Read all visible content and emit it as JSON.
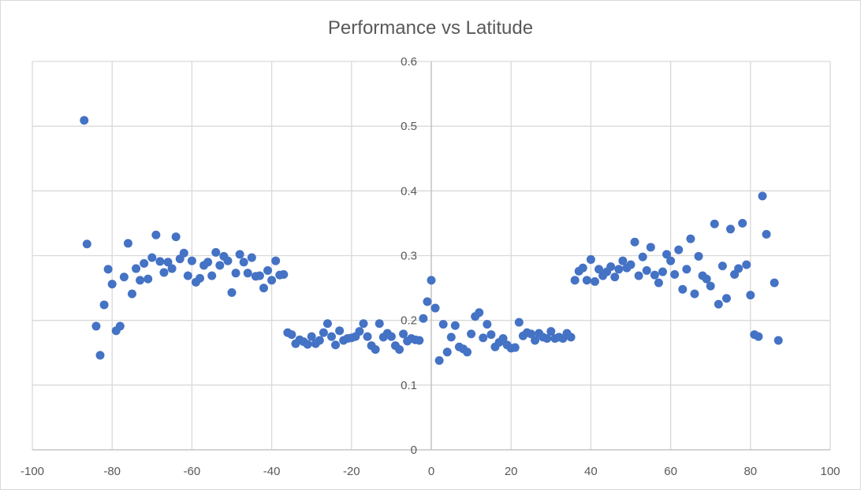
{
  "chart_data": {
    "type": "scatter",
    "title": "Performance vs Latitude",
    "xlabel": "",
    "ylabel": "",
    "xlim": [
      -100,
      100
    ],
    "ylim": [
      0,
      0.6
    ],
    "x_ticks": [
      -100,
      -80,
      -60,
      -40,
      -20,
      0,
      20,
      40,
      60,
      80,
      100
    ],
    "y_ticks": [
      0,
      0.1,
      0.2,
      0.3,
      0.4,
      0.5,
      0.6
    ],
    "x_tick_labels": [
      "-100",
      "-80",
      "-60",
      "-40",
      "-20",
      "0",
      "20",
      "40",
      "60",
      "80",
      "100"
    ],
    "y_tick_labels": [
      "0",
      "0.1",
      "0.2",
      "0.3",
      "0.4",
      "0.5",
      "0.6"
    ],
    "grid": true,
    "legend": "none",
    "marker_color": "#4472c4",
    "series": [
      {
        "name": "Performance",
        "x": [
          -87,
          -86.3,
          -84,
          -83,
          -82,
          -81,
          -80,
          -79,
          -78,
          -77,
          -76,
          -75,
          -74,
          -73,
          -72,
          -71,
          -70,
          -69,
          -68,
          -67,
          -66,
          -65,
          -64,
          -63,
          -62,
          -61,
          -60,
          -59,
          -58,
          -57,
          -56,
          -55,
          -54,
          -53,
          -52,
          -51,
          -50,
          -49,
          -48,
          -47,
          -46,
          -45,
          -44,
          -43,
          -42,
          -41,
          -40,
          -39,
          -38,
          -37,
          -36,
          -35,
          -34,
          -33,
          -32,
          -31,
          -30,
          -29,
          -28,
          -27,
          -26,
          -25,
          -24,
          -23,
          -22,
          -21,
          -20,
          -19,
          -18,
          -17,
          -16,
          -15,
          -14,
          -13,
          -12,
          -11,
          -10,
          -9,
          -8,
          -7,
          -6,
          -5,
          -4,
          -3,
          -2,
          -1,
          0,
          1,
          2,
          3,
          4,
          5,
          6,
          7,
          8,
          9,
          10,
          11,
          12,
          13,
          14,
          15,
          16,
          17,
          18,
          19,
          20,
          21,
          22,
          23,
          24,
          25,
          26,
          27,
          28,
          29,
          30,
          31,
          32,
          33,
          34,
          35,
          36,
          37,
          38,
          39,
          40,
          41,
          42,
          43,
          44,
          45,
          46,
          47,
          48,
          49,
          50,
          51,
          52,
          53,
          54,
          55,
          56,
          57,
          58,
          59,
          60,
          61,
          62,
          63,
          64,
          65,
          66,
          67,
          68,
          69,
          70,
          71,
          72,
          73,
          74,
          75,
          76,
          77,
          78,
          79,
          80,
          81,
          82,
          83,
          84,
          86,
          87
        ],
        "y": [
          0.509,
          0.318,
          0.191,
          0.146,
          0.224,
          0.279,
          0.256,
          0.184,
          0.191,
          0.267,
          0.319,
          0.241,
          0.28,
          0.262,
          0.288,
          0.264,
          0.297,
          0.332,
          0.291,
          0.274,
          0.29,
          0.28,
          0.329,
          0.295,
          0.304,
          0.269,
          0.292,
          0.259,
          0.265,
          0.285,
          0.29,
          0.269,
          0.305,
          0.285,
          0.299,
          0.292,
          0.243,
          0.273,
          0.302,
          0.29,
          0.273,
          0.297,
          0.268,
          0.269,
          0.25,
          0.277,
          0.262,
          0.292,
          0.27,
          0.271,
          0.181,
          0.178,
          0.164,
          0.17,
          0.167,
          0.163,
          0.175,
          0.164,
          0.169,
          0.181,
          0.195,
          0.175,
          0.162,
          0.184,
          0.169,
          0.172,
          0.173,
          0.175,
          0.183,
          0.195,
          0.175,
          0.161,
          0.155,
          0.195,
          0.174,
          0.18,
          0.175,
          0.161,
          0.155,
          0.179,
          0.168,
          0.172,
          0.17,
          0.169,
          0.203,
          0.229,
          0.262,
          0.219,
          0.138,
          0.194,
          0.151,
          0.174,
          0.192,
          0.159,
          0.156,
          0.151,
          0.179,
          0.206,
          0.212,
          0.173,
          0.194,
          0.178,
          0.159,
          0.166,
          0.172,
          0.162,
          0.157,
          0.158,
          0.197,
          0.176,
          0.181,
          0.179,
          0.169,
          0.18,
          0.174,
          0.172,
          0.183,
          0.172,
          0.174,
          0.172,
          0.18,
          0.174,
          0.262,
          0.276,
          0.281,
          0.262,
          0.294,
          0.26,
          0.279,
          0.269,
          0.275,
          0.283,
          0.267,
          0.279,
          0.292,
          0.281,
          0.286,
          0.321,
          0.269,
          0.298,
          0.277,
          0.313,
          0.27,
          0.258,
          0.275,
          0.302,
          0.292,
          0.271,
          0.309,
          0.248,
          0.279,
          0.326,
          0.241,
          0.299,
          0.269,
          0.264,
          0.253,
          0.349,
          0.225,
          0.284,
          0.234,
          0.341,
          0.271,
          0.28,
          0.35,
          0.286,
          0.239,
          0.178,
          0.175,
          0.392,
          0.333,
          0.258,
          0.169
        ]
      }
    ]
  }
}
